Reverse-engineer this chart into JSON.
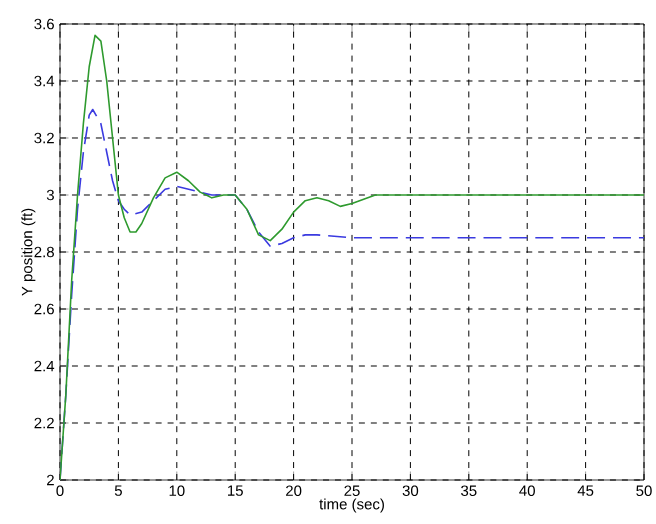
{
  "chart_data": {
    "type": "line",
    "xlabel": "time (sec)",
    "ylabel": "Y position (ft)",
    "xlim": [
      0,
      50
    ],
    "ylim": [
      2,
      3.6
    ],
    "xticks": [
      0,
      5,
      10,
      15,
      20,
      25,
      30,
      35,
      40,
      45,
      50
    ],
    "yticks": [
      2,
      2.2,
      2.4,
      2.6,
      2.8,
      3,
      3.2,
      3.4,
      3.6
    ],
    "grid": true,
    "series": [
      {
        "color": "#3a3ae0",
        "line_style": "dashed",
        "x": [
          0,
          0.5,
          1,
          1.5,
          2,
          2.5,
          2.8,
          3.5,
          4,
          4.5,
          5,
          5.5,
          6,
          7,
          8,
          9,
          10,
          11,
          12,
          13,
          15,
          16,
          17,
          18,
          19,
          20,
          21,
          22,
          25,
          30,
          40,
          50
        ],
        "values": [
          2,
          2.3,
          2.65,
          2.95,
          3.15,
          3.28,
          3.3,
          3.25,
          3.15,
          3.05,
          2.98,
          2.95,
          2.93,
          2.94,
          2.98,
          3.02,
          3.03,
          3.02,
          3.01,
          3.0,
          3.0,
          2.95,
          2.87,
          2.82,
          2.83,
          2.85,
          2.86,
          2.86,
          2.85,
          2.85,
          2.85,
          2.85
        ]
      },
      {
        "color": "#2e9a2e",
        "line_style": "solid",
        "x": [
          0,
          0.5,
          1,
          1.5,
          2,
          2.5,
          3,
          3.5,
          4,
          4.5,
          5,
          5.5,
          6,
          6.5,
          7,
          8,
          9,
          10,
          11,
          12,
          13,
          14,
          15,
          16,
          17,
          18,
          19,
          20,
          21,
          22,
          23,
          24,
          25,
          27,
          30,
          40,
          50
        ],
        "values": [
          2,
          2.3,
          2.7,
          3.0,
          3.25,
          3.45,
          3.56,
          3.54,
          3.4,
          3.2,
          3.0,
          2.92,
          2.87,
          2.87,
          2.9,
          2.99,
          3.06,
          3.08,
          3.05,
          3.01,
          2.99,
          3.0,
          3.0,
          2.95,
          2.86,
          2.84,
          2.88,
          2.94,
          2.98,
          2.99,
          2.98,
          2.96,
          2.97,
          3.0,
          3.0,
          3.0,
          3.0
        ]
      }
    ]
  }
}
